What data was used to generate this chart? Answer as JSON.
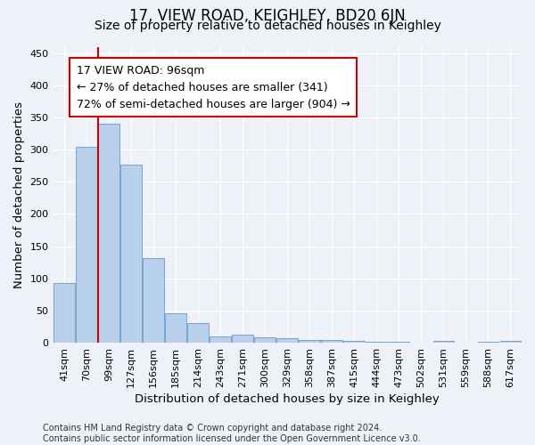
{
  "title": "17, VIEW ROAD, KEIGHLEY, BD20 6JN",
  "subtitle": "Size of property relative to detached houses in Keighley",
  "xlabel": "Distribution of detached houses by size in Keighley",
  "ylabel": "Number of detached properties",
  "categories": [
    "41sqm",
    "70sqm",
    "99sqm",
    "127sqm",
    "156sqm",
    "185sqm",
    "214sqm",
    "243sqm",
    "271sqm",
    "300sqm",
    "329sqm",
    "358sqm",
    "387sqm",
    "415sqm",
    "444sqm",
    "473sqm",
    "502sqm",
    "531sqm",
    "559sqm",
    "588sqm",
    "617sqm"
  ],
  "values": [
    93,
    305,
    340,
    277,
    131,
    46,
    31,
    10,
    13,
    8,
    7,
    4,
    4,
    3,
    2,
    1,
    0,
    3,
    0,
    2,
    3
  ],
  "bar_color": "#b8d0eb",
  "bar_edge_color": "#6699cc",
  "vline_color": "#cc0000",
  "vline_x": 1.5,
  "annotation_text": "17 VIEW ROAD: 96sqm\n← 27% of detached houses are smaller (341)\n72% of semi-detached houses are larger (904) →",
  "annotation_box_color": "#ffffff",
  "annotation_box_edge_color": "#cc0000",
  "ylim": [
    0,
    460
  ],
  "yticks": [
    0,
    50,
    100,
    150,
    200,
    250,
    300,
    350,
    400,
    450
  ],
  "footer_text": "Contains HM Land Registry data © Crown copyright and database right 2024.\nContains public sector information licensed under the Open Government Licence v3.0.",
  "background_color": "#eef2f8",
  "grid_color": "#ffffff",
  "title_fontsize": 12,
  "subtitle_fontsize": 10,
  "axis_label_fontsize": 9.5,
  "tick_fontsize": 8,
  "footer_fontsize": 7,
  "annotation_fontsize": 9
}
